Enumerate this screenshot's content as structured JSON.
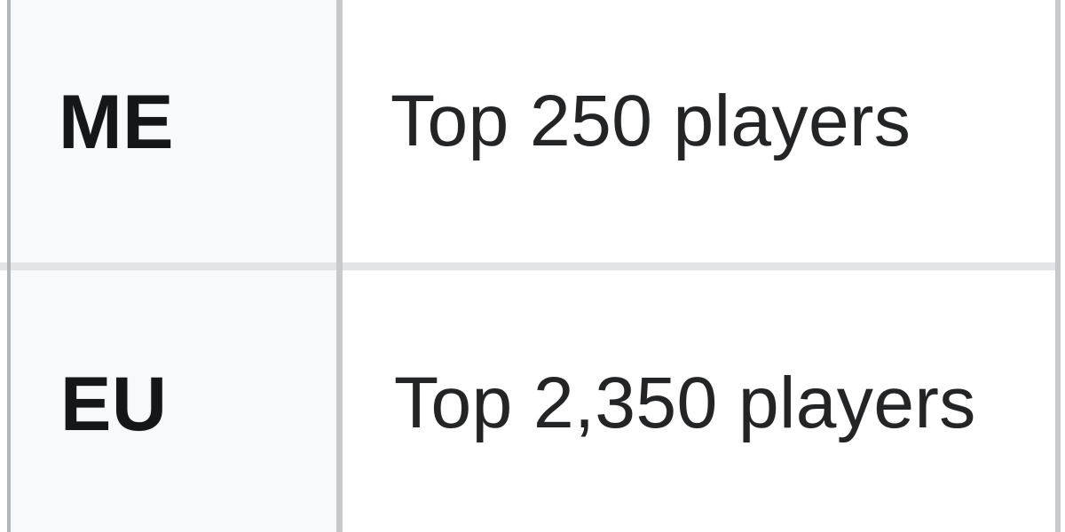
{
  "table": {
    "rows": [
      {
        "region_code": "ME",
        "players_text": "Top 250 players"
      },
      {
        "region_code": "EU",
        "players_text": "Top 2,350 players"
      }
    ]
  },
  "colors": {
    "header_column_bg": "#f8f9fa",
    "value_column_bg": "#ffffff",
    "outer_border": "#b3b6b9",
    "column_border": "#c7cacc",
    "row_divider": "#e3e4e6",
    "header_text": "#141618",
    "value_text": "#232425"
  }
}
